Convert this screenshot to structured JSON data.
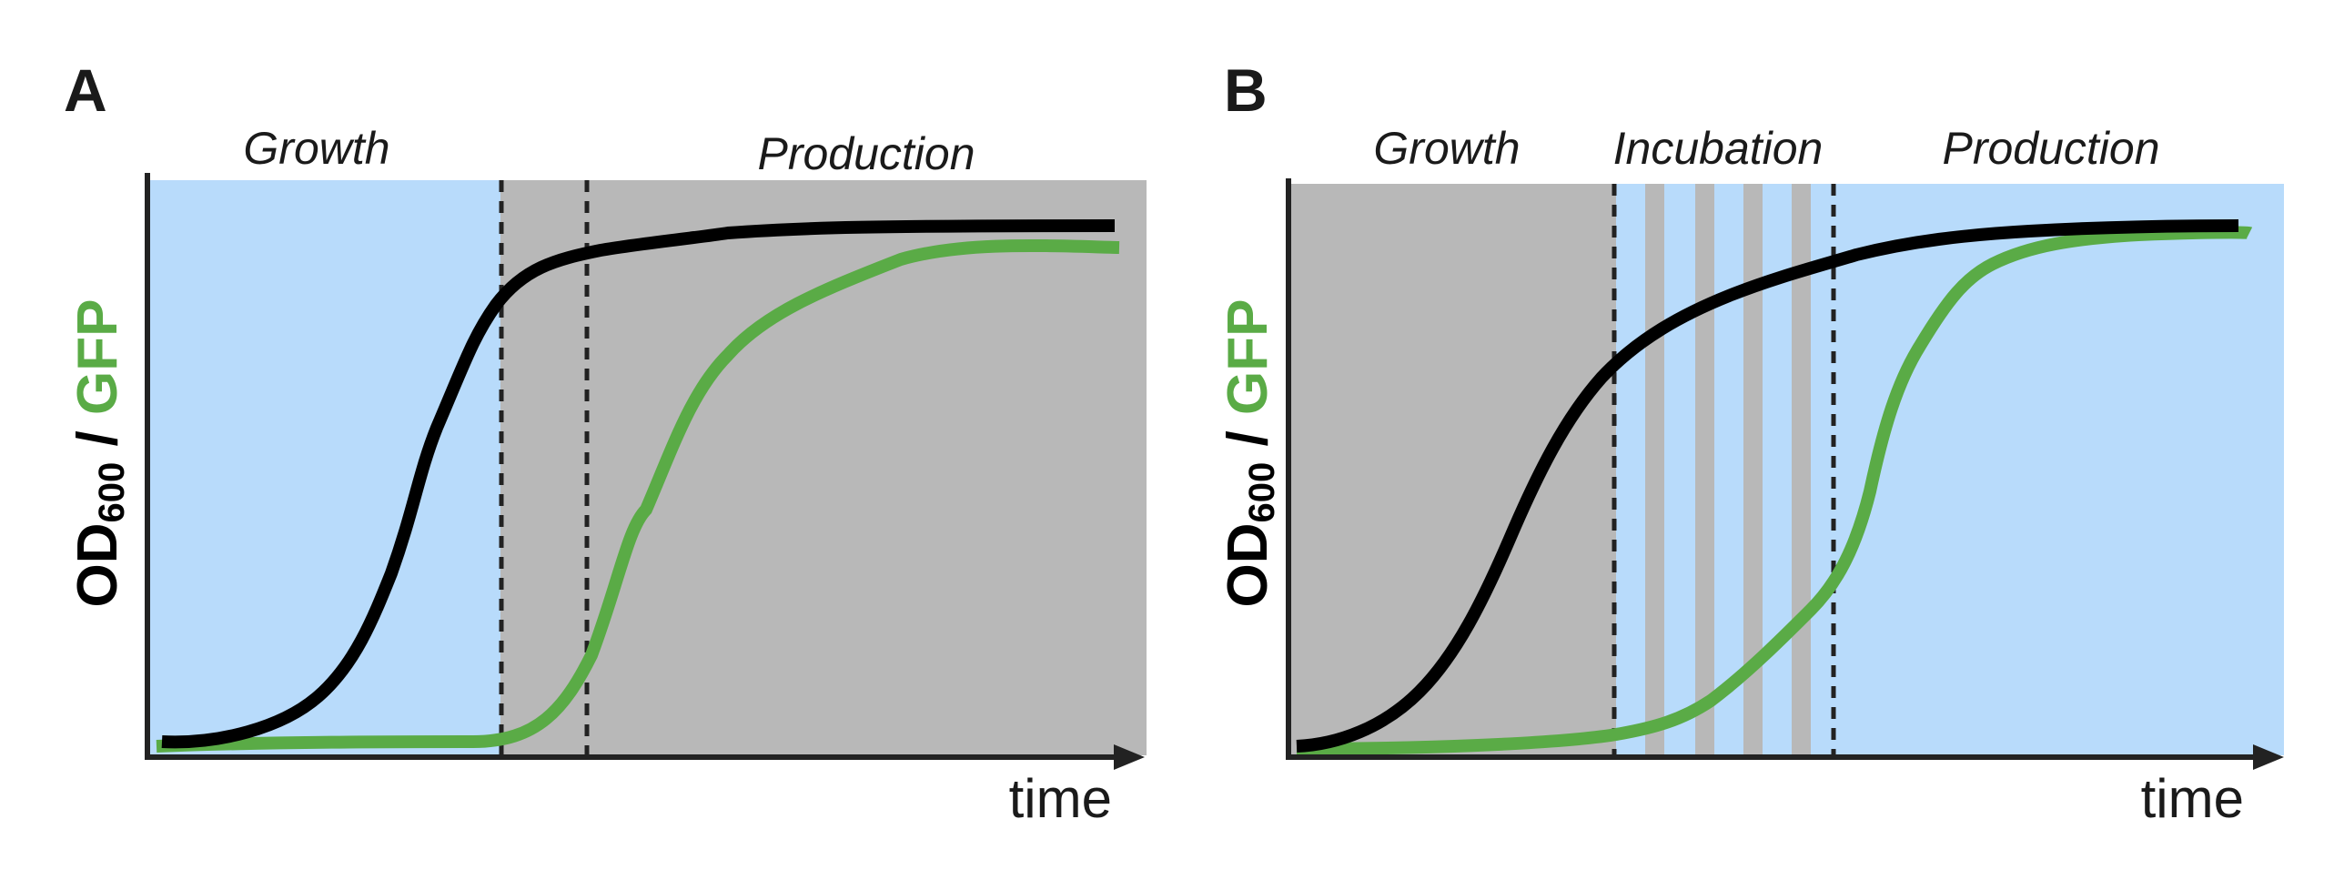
{
  "colors": {
    "growth_bg": "#b8dbfb",
    "off_bg": "#b8b8b8",
    "od_curve": "#000000",
    "gfp_curve": "#5aab46",
    "axis": "#222222",
    "divider": "#222222"
  },
  "panels": [
    {
      "letter": "A",
      "phases": {
        "growth": "Growth",
        "production": "Production"
      },
      "x_axis_label": "time",
      "y_axis_label": {
        "od": "OD",
        "od_sub": "600",
        "sep": " / ",
        "gfp": "GFP"
      }
    },
    {
      "letter": "B",
      "phases": {
        "growth": "Growth",
        "incubation": "Incubation",
        "production": "Production"
      },
      "x_axis_label": "time",
      "y_axis_label": {
        "od": "OD",
        "od_sub": "600",
        "sep": " / ",
        "gfp": "GFP"
      }
    }
  ]
}
